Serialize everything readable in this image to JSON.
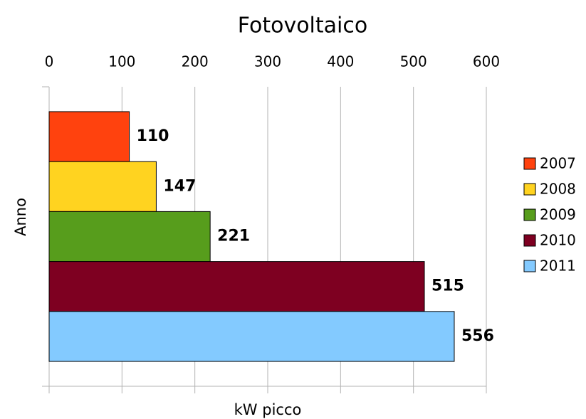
{
  "chart_data": {
    "type": "bar",
    "orientation": "horizontal",
    "title": "Fotovoltaico",
    "x_label": "kW picco",
    "y_label": "Anno",
    "categories": [
      null
    ],
    "series": [
      {
        "name": "2007",
        "color": "#ff420e",
        "values": [
          110
        ]
      },
      {
        "name": "2008",
        "color": "#ffd320",
        "values": [
          147
        ]
      },
      {
        "name": "2009",
        "color": "#579d1c",
        "values": [
          221
        ]
      },
      {
        "name": "2010",
        "color": "#7e0021",
        "values": [
          515
        ]
      },
      {
        "name": "2011",
        "color": "#83caff",
        "values": [
          556
        ]
      }
    ],
    "xlim": [
      0,
      600
    ],
    "xticks": [
      0,
      100,
      200,
      300,
      400,
      500,
      600
    ],
    "grid": true,
    "legend": "right"
  }
}
